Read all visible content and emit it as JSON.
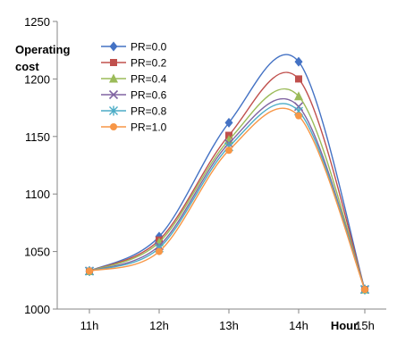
{
  "chart_data": {
    "type": "line",
    "ylabel": "Operating\ncost",
    "xlabel": "Hour",
    "categories": [
      "11h",
      "12h",
      "13h",
      "14h",
      "15h"
    ],
    "ylim": [
      1000,
      1250
    ],
    "yticks": [
      1000,
      1050,
      1100,
      1150,
      1200,
      1250
    ],
    "grid": false,
    "legend_position": "top-left",
    "series": [
      {
        "name": "PR=0.0",
        "color": "#4472C4",
        "marker": "diamond",
        "values": [
          1033,
          1063,
          1162,
          1215,
          1017
        ]
      },
      {
        "name": "PR=0.2",
        "color": "#C0504D",
        "marker": "square",
        "values": [
          1033,
          1060,
          1151,
          1200,
          1017
        ]
      },
      {
        "name": "PR=0.4",
        "color": "#9BBB59",
        "marker": "triangle",
        "values": [
          1033,
          1058,
          1147,
          1185,
          1017
        ]
      },
      {
        "name": "PR=0.6",
        "color": "#8064A2",
        "marker": "x",
        "values": [
          1033,
          1055,
          1144,
          1176,
          1017
        ]
      },
      {
        "name": "PR=0.8",
        "color": "#4BACC6",
        "marker": "star",
        "values": [
          1033,
          1053,
          1141,
          1172,
          1017
        ]
      },
      {
        "name": "PR=1.0",
        "color": "#F79646",
        "marker": "circle",
        "values": [
          1033,
          1050,
          1138,
          1168,
          1017
        ]
      }
    ]
  }
}
